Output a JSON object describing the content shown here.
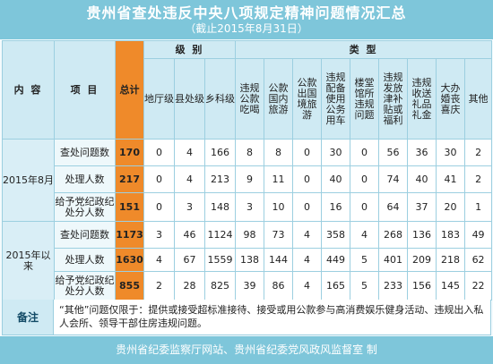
{
  "header": {
    "title": "贵州省查处违反中央八项规定精神问题情况汇总",
    "subtitle": "（截止2015年8月31日）"
  },
  "table": {
    "col_content": "内 容",
    "col_item": "项 目",
    "col_total": "总计",
    "group_level": "级 别",
    "group_type": "类 型",
    "levels": [
      "地厅级",
      "县处级",
      "乡科级"
    ],
    "types": [
      "违规公款吃喝",
      "公款国内旅游",
      "公款出国境旅游",
      "违规配备使用公务用车",
      "楼堂馆所违规问题",
      "违规发放津补贴或福利",
      "违规收送礼品礼金",
      "大办婚丧喜庆",
      "其他"
    ],
    "periods": [
      "2015年8月",
      "2015年以来"
    ],
    "rows": [
      {
        "item": "查处问题数",
        "total": "170",
        "levels": [
          "0",
          "4",
          "166"
        ],
        "types": [
          "8",
          "8",
          "0",
          "30",
          "0",
          "56",
          "36",
          "30",
          "2"
        ]
      },
      {
        "item": "处理人数",
        "total": "217",
        "levels": [
          "0",
          "4",
          "213"
        ],
        "types": [
          "9",
          "11",
          "0",
          "40",
          "0",
          "74",
          "40",
          "41",
          "2"
        ]
      },
      {
        "item": "给予党纪政纪处分人数",
        "total": "151",
        "levels": [
          "0",
          "3",
          "148"
        ],
        "types": [
          "3",
          "10",
          "0",
          "16",
          "0",
          "64",
          "37",
          "20",
          "1"
        ]
      },
      {
        "item": "查处问题数",
        "total": "1173",
        "levels": [
          "3",
          "46",
          "1124"
        ],
        "types": [
          "98",
          "73",
          "4",
          "358",
          "4",
          "268",
          "136",
          "183",
          "49"
        ]
      },
      {
        "item": "处理人数",
        "total": "1630",
        "levels": [
          "4",
          "67",
          "1559"
        ],
        "types": [
          "138",
          "144",
          "4",
          "449",
          "5",
          "401",
          "209",
          "218",
          "62"
        ]
      },
      {
        "item": "给予党纪政纪处分人数",
        "total": "855",
        "levels": [
          "2",
          "28",
          "825"
        ],
        "types": [
          "39",
          "86",
          "4",
          "165",
          "5",
          "233",
          "156",
          "145",
          "22"
        ]
      }
    ]
  },
  "remark": {
    "label": "备注",
    "text": "“其他”问题仅限于：提供或接受超标准接待、接受或用公款参与高消费娱乐健身活动、违规出入私人会所、领导干部住房违规问题。"
  },
  "footer": {
    "text": "贵州省纪委监察厅网站、贵州省纪委党风政风监督室 制"
  }
}
